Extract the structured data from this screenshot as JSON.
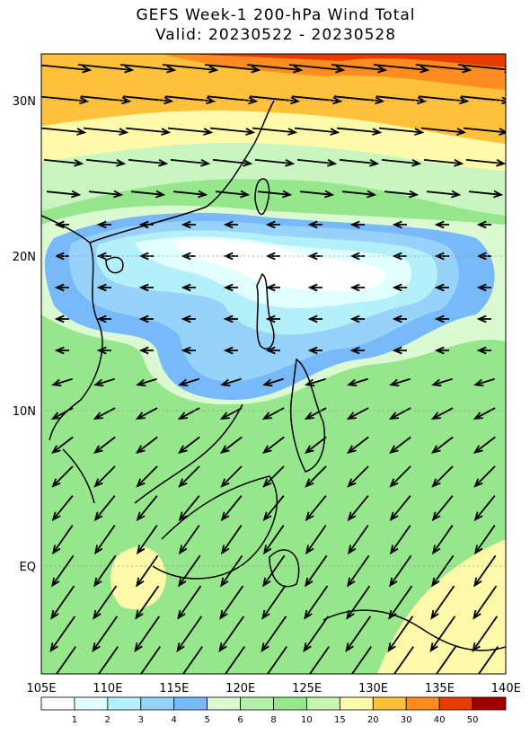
{
  "title": "GEFS Week-1 200-hPa Wind Total",
  "subtitle": "Valid: 20230522 - 20230528",
  "lon_labels": [
    "105E",
    "110E",
    "115E",
    "120E",
    "125E",
    "130E",
    "135E",
    "140E"
  ],
  "lat_labels": [
    "30N",
    "20N",
    "10N",
    "EQ"
  ],
  "colorbar": {
    "levels": [
      1,
      2,
      3,
      4,
      5,
      6,
      8,
      10,
      15,
      20,
      30,
      40,
      50
    ],
    "colors": [
      "#ffffff",
      "#e1ffff",
      "#b4f0fa",
      "#96d2fa",
      "#78b9fa",
      "#dcfad2",
      "#b4f0aa",
      "#96e68c",
      "#c8f5b4",
      "#fffaaa",
      "#ffc03c",
      "#ff8c1e",
      "#e63c00",
      "#a00000"
    ]
  }
}
